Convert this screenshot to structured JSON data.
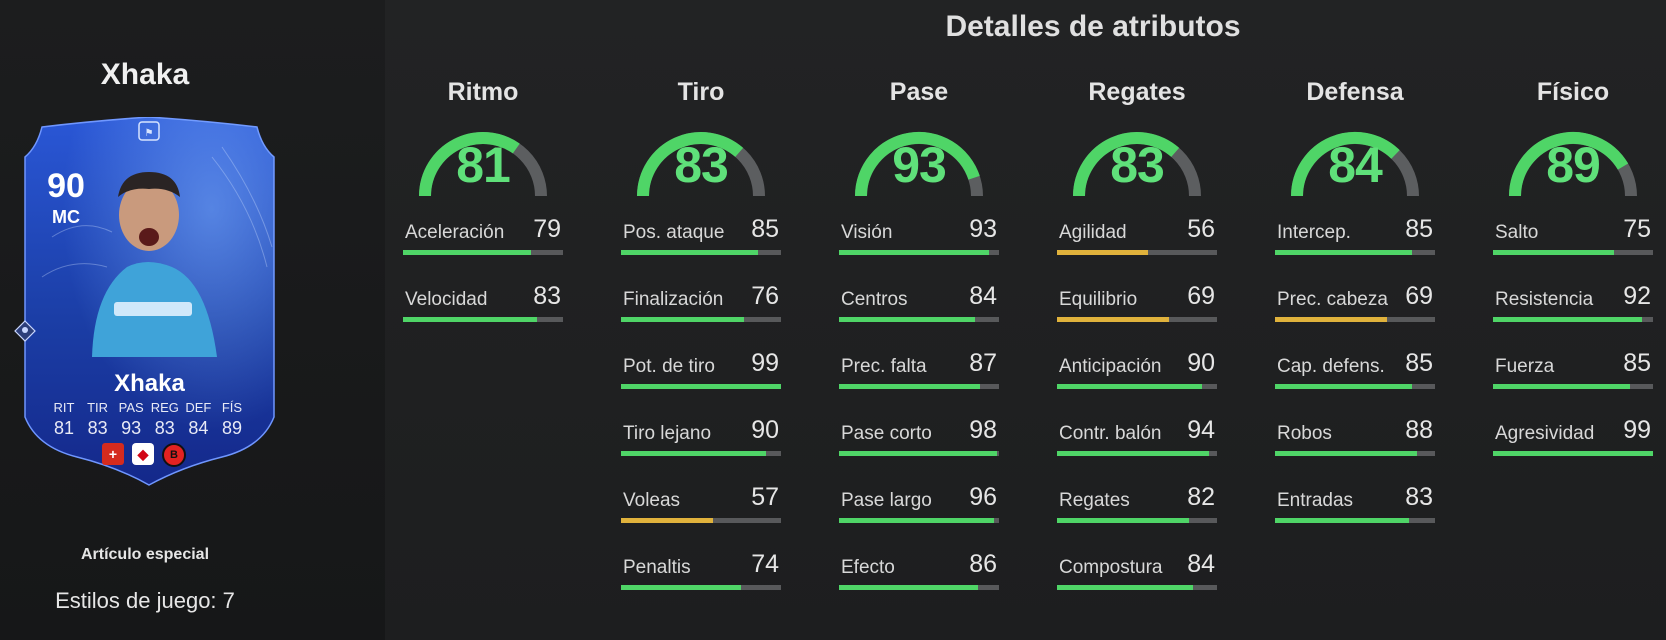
{
  "player": {
    "name": "Xhaka",
    "card": {
      "rating": "90",
      "position": "MC",
      "name": "Xhaka",
      "stat_labels": [
        "RIT",
        "TIR",
        "PAS",
        "REG",
        "DEF",
        "FÍS"
      ],
      "stat_values": [
        "81",
        "83",
        "93",
        "83",
        "84",
        "89"
      ]
    },
    "item_type": "Artículo especial",
    "playstyles": "Estilos de juego: 7"
  },
  "section_title": "Detalles de atributos",
  "colors": {
    "green": "#4fd567",
    "yellow": "#e0b23c",
    "card_blue": "#1d3fa8"
  },
  "categories": [
    {
      "name": "Ritmo",
      "value": "81",
      "stats": [
        {
          "label": "Aceleración",
          "value": "79"
        },
        {
          "label": "Velocidad",
          "value": "83"
        }
      ]
    },
    {
      "name": "Tiro",
      "value": "83",
      "stats": [
        {
          "label": "Pos. ataque",
          "value": "85"
        },
        {
          "label": "Finalización",
          "value": "76"
        },
        {
          "label": "Pot. de tiro",
          "value": "99"
        },
        {
          "label": "Tiro lejano",
          "value": "90"
        },
        {
          "label": "Voleas",
          "value": "57"
        },
        {
          "label": "Penaltis",
          "value": "74"
        }
      ]
    },
    {
      "name": "Pase",
      "value": "93",
      "stats": [
        {
          "label": "Visión",
          "value": "93"
        },
        {
          "label": "Centros",
          "value": "84"
        },
        {
          "label": "Prec. falta",
          "value": "87"
        },
        {
          "label": "Pase corto",
          "value": "98"
        },
        {
          "label": "Pase largo",
          "value": "96"
        },
        {
          "label": "Efecto",
          "value": "86"
        }
      ]
    },
    {
      "name": "Regates",
      "value": "83",
      "stats": [
        {
          "label": "Agilidad",
          "value": "56"
        },
        {
          "label": "Equilibrio",
          "value": "69"
        },
        {
          "label": "Anticipación",
          "value": "90"
        },
        {
          "label": "Contr. balón",
          "value": "94"
        },
        {
          "label": "Regates",
          "value": "82"
        },
        {
          "label": "Compostura",
          "value": "84"
        }
      ]
    },
    {
      "name": "Defensa",
      "value": "84",
      "stats": [
        {
          "label": "Intercep.",
          "value": "85"
        },
        {
          "label": "Prec. cabeza",
          "value": "69"
        },
        {
          "label": "Cap. defens.",
          "value": "85"
        },
        {
          "label": "Robos",
          "value": "88"
        },
        {
          "label": "Entradas",
          "value": "83"
        }
      ]
    },
    {
      "name": "Físico",
      "value": "89",
      "stats": [
        {
          "label": "Salto",
          "value": "75"
        },
        {
          "label": "Resistencia",
          "value": "92"
        },
        {
          "label": "Fuerza",
          "value": "85"
        },
        {
          "label": "Agresividad",
          "value": "99"
        }
      ]
    }
  ]
}
